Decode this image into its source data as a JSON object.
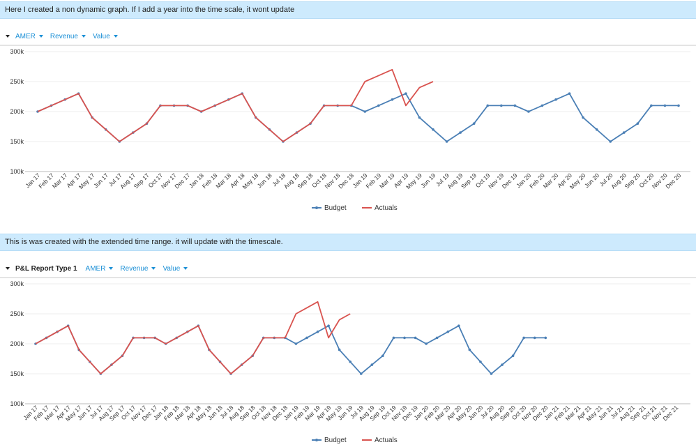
{
  "banners": {
    "top": "Here I created a non dynamic graph. If I add a year into the time scale, it wont update",
    "bottom": "This is was created with the extended time range. it will update with the timescale."
  },
  "toolbar1": {
    "items": [
      "AMER",
      "Revenue",
      "Value"
    ]
  },
  "toolbar2": {
    "report": "P&L Report Type 1",
    "items": [
      "AMER",
      "Revenue",
      "Value"
    ]
  },
  "colors": {
    "budget": "#4a7fb5",
    "actuals": "#d9534f",
    "banner": "#cdeafd",
    "link": "#1a8fd6"
  },
  "chart_data": [
    {
      "type": "line",
      "ylim": [
        100000,
        300000
      ],
      "yticks": [
        "100k",
        "150k",
        "200k",
        "250k",
        "300k"
      ],
      "grid": true,
      "legend": "bottom",
      "categories": [
        "Jan 17",
        "Feb 17",
        "Mar 17",
        "Apr 17",
        "May 17",
        "Jun 17",
        "Jul 17",
        "Aug 17",
        "Sep 17",
        "Oct 17",
        "Nov 17",
        "Dec 17",
        "Jan 18",
        "Feb 18",
        "Mar 18",
        "Apr 18",
        "May 18",
        "Jun 18",
        "Jul 18",
        "Aug 18",
        "Sep 18",
        "Oct 18",
        "Nov 18",
        "Dec 18",
        "Jan 19",
        "Feb 19",
        "Mar 19",
        "Apr 19",
        "May 19",
        "Jun 19",
        "Jul 19",
        "Aug 19",
        "Sep 19",
        "Oct 19",
        "Nov 19",
        "Dec 19",
        "Jan 20",
        "Feb 20",
        "Mar 20",
        "Apr 20",
        "May 20",
        "Jun 20",
        "Jul 20",
        "Aug 20",
        "Sep 20",
        "Oct 20",
        "Nov 20",
        "Dec 20"
      ],
      "series": [
        {
          "name": "Budget",
          "color": "#4a7fb5",
          "markers": true,
          "values": [
            200000,
            210000,
            220000,
            230000,
            190000,
            170000,
            150000,
            165000,
            180000,
            210000,
            210000,
            210000,
            200000,
            210000,
            220000,
            230000,
            190000,
            170000,
            150000,
            165000,
            180000,
            210000,
            210000,
            210000,
            200000,
            210000,
            220000,
            230000,
            190000,
            170000,
            150000,
            165000,
            180000,
            210000,
            210000,
            210000,
            200000,
            210000,
            220000,
            230000,
            190000,
            170000,
            150000,
            165000,
            180000,
            210000,
            210000,
            210000
          ]
        },
        {
          "name": "Actuals",
          "color": "#d9534f",
          "markers": false,
          "values": [
            200000,
            210000,
            220000,
            230000,
            190000,
            170000,
            150000,
            165000,
            180000,
            210000,
            210000,
            210000,
            200000,
            210000,
            220000,
            230000,
            190000,
            170000,
            150000,
            165000,
            180000,
            210000,
            210000,
            210000,
            250000,
            260000,
            270000,
            210000,
            240000,
            250000,
            null,
            null,
            null,
            null,
            null,
            null,
            null,
            null,
            null,
            null,
            null,
            null,
            null,
            null,
            null,
            null,
            null,
            null
          ]
        }
      ]
    },
    {
      "type": "line",
      "ylim": [
        100000,
        300000
      ],
      "yticks": [
        "100k",
        "150k",
        "200k",
        "250k",
        "300k"
      ],
      "grid": true,
      "legend": "bottom",
      "categories": [
        "Jan 17",
        "Feb 17",
        "Mar 17",
        "Apr 17",
        "May 17",
        "Jun 17",
        "Jul 17",
        "Aug 17",
        "Sep 17",
        "Oct 17",
        "Nov 17",
        "Dec 17",
        "Jan 18",
        "Feb 18",
        "Mar 18",
        "Apr 18",
        "May 18",
        "Jun 18",
        "Jul 18",
        "Aug 18",
        "Sep 18",
        "Oct 18",
        "Nov 18",
        "Dec 18",
        "Jan 19",
        "Feb 19",
        "Mar 19",
        "Apr 19",
        "May 19",
        "Jun 19",
        "Jul 19",
        "Aug 19",
        "Sep 19",
        "Oct 19",
        "Nov 19",
        "Dec 19",
        "Jan 20",
        "Feb 20",
        "Mar 20",
        "Apr 20",
        "May 20",
        "Jun 20",
        "Jul 20",
        "Aug 20",
        "Sep 20",
        "Oct 20",
        "Nov 20",
        "Dec 20",
        "Jan 21",
        "Feb 21",
        "Mar 21",
        "Apr 21",
        "May 21",
        "Jun 21",
        "Jul 21",
        "Aug 21",
        "Sep 21",
        "Oct 21",
        "Nov 21",
        "Dec 21"
      ],
      "series": [
        {
          "name": "Budget",
          "color": "#4a7fb5",
          "markers": true,
          "values": [
            200000,
            210000,
            220000,
            230000,
            190000,
            170000,
            150000,
            165000,
            180000,
            210000,
            210000,
            210000,
            200000,
            210000,
            220000,
            230000,
            190000,
            170000,
            150000,
            165000,
            180000,
            210000,
            210000,
            210000,
            200000,
            210000,
            220000,
            230000,
            190000,
            170000,
            150000,
            165000,
            180000,
            210000,
            210000,
            210000,
            200000,
            210000,
            220000,
            230000,
            190000,
            170000,
            150000,
            165000,
            180000,
            210000,
            210000,
            210000,
            null,
            null,
            null,
            null,
            null,
            null,
            null,
            null,
            null,
            null,
            null,
            null
          ]
        },
        {
          "name": "Actuals",
          "color": "#d9534f",
          "markers": false,
          "values": [
            200000,
            210000,
            220000,
            230000,
            190000,
            170000,
            150000,
            165000,
            180000,
            210000,
            210000,
            210000,
            200000,
            210000,
            220000,
            230000,
            190000,
            170000,
            150000,
            165000,
            180000,
            210000,
            210000,
            210000,
            250000,
            260000,
            270000,
            210000,
            240000,
            250000,
            null,
            null,
            null,
            null,
            null,
            null,
            null,
            null,
            null,
            null,
            null,
            null,
            null,
            null,
            null,
            null,
            null,
            null,
            null,
            null,
            null,
            null,
            null,
            null,
            null,
            null,
            null,
            null,
            null,
            null
          ]
        }
      ]
    }
  ]
}
